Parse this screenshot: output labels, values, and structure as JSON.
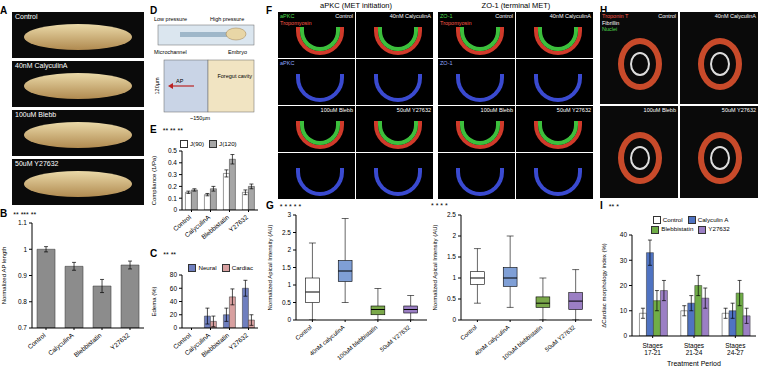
{
  "chart_data": [
    {
      "panel": "B",
      "type": "bar",
      "ylabel": "Normalized AP length",
      "categories": [
        "Control",
        "CalyculinA",
        "Blebbistatin",
        "Y27632"
      ],
      "values": [
        1,
        0.935,
        0.86,
        0.94
      ],
      "errors": [
        0.01,
        0.015,
        0.025,
        0.015
      ],
      "color": "#8c8c8c",
      "ylim": [
        0.7,
        1.1
      ],
      "yticks": [
        0.7,
        0.8,
        0.9,
        1,
        1.1
      ],
      "annotations": [
        "**",
        "***",
        "**"
      ]
    },
    {
      "panel": "E",
      "type": "bar",
      "ylabel": "Compliance (1/Pa)",
      "categories": [
        "Control",
        "CalyculinA",
        "Blebbistatin",
        "Y27632"
      ],
      "series": [
        {
          "name": "J(90)",
          "color": "#ffffff",
          "values": [
            0.15,
            0.13,
            0.31,
            0.15
          ],
          "errors": [
            0.01,
            0.01,
            0.03,
            0.02
          ]
        },
        {
          "name": "J(120)",
          "color": "#a6a6a6",
          "values": [
            0.17,
            0.18,
            0.43,
            0.2
          ],
          "errors": [
            0.01,
            0.02,
            0.04,
            0.02
          ]
        }
      ],
      "ylim": [
        0,
        0.5
      ],
      "yticks": [
        0,
        0.1,
        0.2,
        0.3,
        0.4,
        0.5
      ],
      "legend": "top-left",
      "annotations": [
        "**",
        "**",
        "**"
      ]
    },
    {
      "panel": "C",
      "type": "bar",
      "ylabel": "Edema (%)",
      "categories": [
        "Control",
        "CalyculinA",
        "Blebbistatin",
        "Y27632"
      ],
      "series": [
        {
          "name": "Neural",
          "color": "#6f7fbf",
          "values": [
            0,
            18,
            20,
            60
          ],
          "errors": [
            0,
            12,
            10,
            12
          ]
        },
        {
          "name": "Cardiac",
          "color": "#d8a0a0",
          "values": [
            0,
            10,
            47,
            12
          ],
          "errors": [
            0,
            8,
            12,
            8
          ]
        }
      ],
      "ylim": [
        0,
        80
      ],
      "yticks": [
        0,
        20,
        40,
        60,
        80
      ],
      "legend": "top-right",
      "annotations": [
        "**",
        "**"
      ]
    },
    {
      "panel": "G",
      "type": "box",
      "ylabel": "Normalized Apical Intensity (AU)",
      "categories": [
        "Control",
        "40nM calyculinA",
        "100uM blebbistatin",
        "50uM Y27632"
      ],
      "boxes": [
        {
          "min": 0,
          "q1": 0.5,
          "median": 0.8,
          "q3": 1.2,
          "max": 2.2
        },
        {
          "min": 0.5,
          "q1": 1.1,
          "median": 1.4,
          "q3": 1.7,
          "max": 2.9
        },
        {
          "min": 0,
          "q1": 0.15,
          "median": 0.3,
          "q3": 0.4,
          "max": 0.9
        },
        {
          "min": 0,
          "q1": 0.2,
          "median": 0.3,
          "q3": 0.4,
          "max": 0.7
        }
      ],
      "colors": [
        "#ffffff",
        "#7f9fd6",
        "#7aa84a",
        "#9b7fc4"
      ],
      "ylim": [
        0,
        3
      ],
      "yticks": [
        0,
        0.5,
        1,
        1.5,
        2,
        2.5,
        3
      ],
      "annotations": [
        "*",
        "*",
        "*",
        "*",
        "*"
      ]
    },
    {
      "type": "box",
      "ylabel": "Normalized Apical Intensity (AU)",
      "categories": [
        "Control",
        "40nM calyculinA",
        "100uM blebbistatin",
        "50uM Y27632"
      ],
      "boxes": [
        {
          "min": 0.4,
          "q1": 0.85,
          "median": 1,
          "q3": 1.15,
          "max": 1.7
        },
        {
          "min": 0.3,
          "q1": 0.8,
          "median": 1,
          "q3": 1.25,
          "max": 2
        },
        {
          "min": 0,
          "q1": 0.3,
          "median": 0.4,
          "q3": 0.55,
          "max": 1
        },
        {
          "min": 0,
          "q1": 0.25,
          "median": 0.45,
          "q3": 0.65,
          "max": 1.2
        }
      ],
      "colors": [
        "#ffffff",
        "#7f9fd6",
        "#7aa84a",
        "#9b7fc4"
      ],
      "ylim": [
        0,
        2.5
      ],
      "yticks": [
        0,
        0.5,
        1,
        1.5,
        2,
        2.5
      ],
      "annotations": [
        "*",
        "*",
        "*",
        "*"
      ]
    },
    {
      "panel": "I",
      "type": "bar",
      "ylabel": "ΔCardiac morphology index (%)",
      "xlabel": "Treatment Period",
      "categories": [
        "Stages 17-21",
        "Stages 21-24",
        "Stages 24-27"
      ],
      "series": [
        {
          "name": "Control",
          "color": "#ffffff",
          "values": [
            9,
            10,
            9
          ],
          "errors": [
            2,
            2,
            2
          ]
        },
        {
          "name": "Calyculin A",
          "color": "#4f73c2",
          "values": [
            33,
            13,
            10
          ],
          "errors": [
            5,
            3,
            3
          ]
        },
        {
          "name": "Blebbistatin",
          "color": "#70ad47",
          "values": [
            14,
            20,
            17
          ],
          "errors": [
            4,
            4,
            5
          ]
        },
        {
          "name": "Y27632",
          "color": "#9b7fc4",
          "values": [
            18,
            15,
            8
          ],
          "errors": [
            4,
            4,
            3
          ]
        }
      ],
      "ylim": [
        0,
        40
      ],
      "yticks": [
        0,
        10,
        20,
        30,
        40
      ],
      "legend": "top",
      "annotations": [
        "**",
        "*"
      ]
    }
  ],
  "image_panels": {
    "A": {
      "panel": "A",
      "conditions": [
        "Control",
        "40nM CalyculinA",
        "100uM Blebb",
        "50uM Y27632"
      ]
    },
    "D": {
      "panel": "D",
      "labels": [
        "Low pressure",
        "High pressure",
        "Embryo",
        "Microchannel",
        "AP",
        "120µm",
        "~150µm",
        "Foregut cavity"
      ]
    },
    "F": {
      "panel": "F",
      "groups": [
        {
          "title": "aPKC (MET initiation)",
          "channels": [
            "aPKC",
            "Tropomyosin"
          ]
        },
        {
          "title": "ZO-1 (terminal MET)",
          "channels": [
            "ZO-1",
            "Tropomyosin"
          ]
        }
      ],
      "conditions": [
        "Control",
        "40nM CalyculinA",
        "100uM Blebb",
        "50uM Y27632"
      ]
    },
    "H": {
      "panel": "H",
      "channels": [
        "Troponin T",
        "Fibrillin",
        "Nuclei"
      ],
      "conditions": [
        "Control",
        "40nM CalyculinA",
        "100uM Blebb",
        "50uM Y27632"
      ]
    }
  }
}
